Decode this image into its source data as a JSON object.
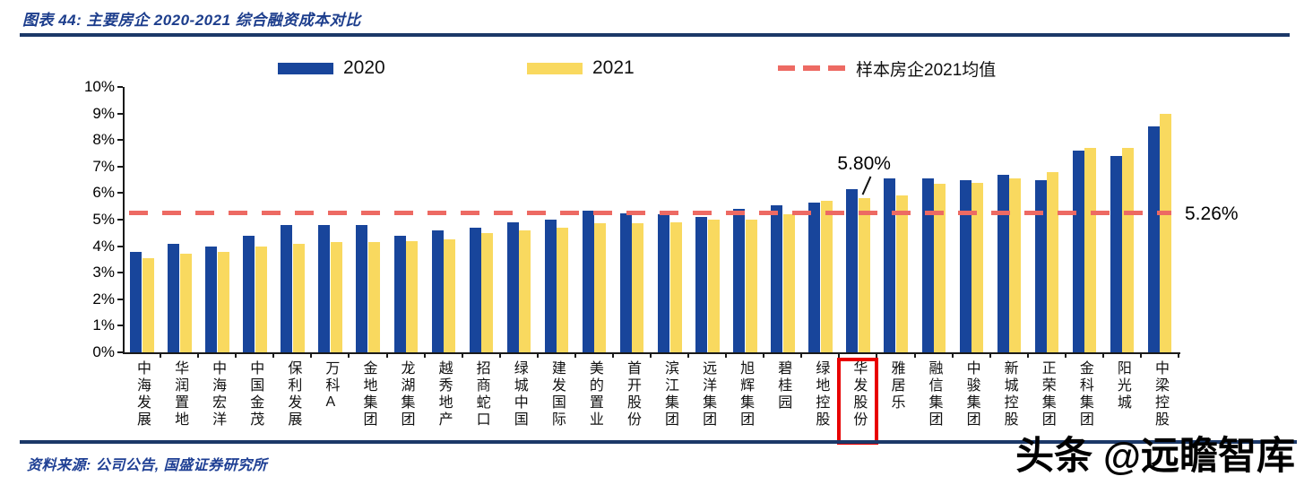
{
  "header": {
    "title": "图表 44:  主要房企 2020-2021 综合融资成本对比"
  },
  "footer": {
    "source": "资料来源: 公司公告, 国盛证券研究所",
    "watermark": "头条 @远瞻智库"
  },
  "colors": {
    "title_text": "#1c3d8c",
    "rule_navy": "#1b3868",
    "bar_2020": "#18459b",
    "bar_2021": "#f9d95f",
    "avg_line": "#ed6a63",
    "highlight_box": "#e80000",
    "source_text": "#1e3f94"
  },
  "chart_data": {
    "type": "bar",
    "title": "主要房企 2020-2021 综合融资成本对比",
    "xlabel": "",
    "ylabel": "",
    "ylim": [
      0,
      10
    ],
    "yticks": [
      "0%",
      "1%",
      "2%",
      "3%",
      "4%",
      "5%",
      "6%",
      "7%",
      "8%",
      "9%",
      "10%"
    ],
    "grid": false,
    "legend_position": "top",
    "categories": [
      "中海发展",
      "华润置地",
      "中海宏洋",
      "中国金茂",
      "保利发展",
      "万科A",
      "金地集团",
      "龙湖集团",
      "越秀地产",
      "招商蛇口",
      "绿城中国",
      "建发国际",
      "美的置业",
      "首开股份",
      "滨江集团",
      "远洋集团",
      "旭辉集团",
      "碧桂园",
      "绿地控股",
      "华发股份",
      "雅居乐",
      "融信集团",
      "中骏集团",
      "新城控股",
      "正荣集团",
      "金科集团",
      "阳光城",
      "中梁控股"
    ],
    "series": [
      {
        "name": "2020",
        "color": "#18459b",
        "values": [
          3.8,
          4.1,
          4.0,
          4.4,
          4.8,
          4.8,
          4.8,
          4.4,
          4.6,
          4.7,
          4.9,
          5.0,
          5.35,
          5.25,
          5.2,
          5.1,
          5.4,
          5.55,
          5.65,
          6.15,
          6.55,
          6.55,
          6.5,
          6.7,
          6.5,
          7.6,
          7.4,
          8.5
        ]
      },
      {
        "name": "2021",
        "color": "#f9d95f",
        "values": [
          3.55,
          3.7,
          3.8,
          4.0,
          4.1,
          4.15,
          4.15,
          4.2,
          4.25,
          4.5,
          4.6,
          4.7,
          4.85,
          4.85,
          4.9,
          5.0,
          5.0,
          5.2,
          5.7,
          5.8,
          5.9,
          6.35,
          6.4,
          6.55,
          6.8,
          7.7,
          7.7,
          9.0
        ]
      }
    ],
    "average_line": {
      "label": "样本房企2021均值",
      "value": 5.26,
      "value_label": "5.26%",
      "color": "#ed6a63"
    },
    "highlight": {
      "category": "华发股份",
      "series": "2021",
      "value": 5.8,
      "label": "5.80%"
    }
  }
}
